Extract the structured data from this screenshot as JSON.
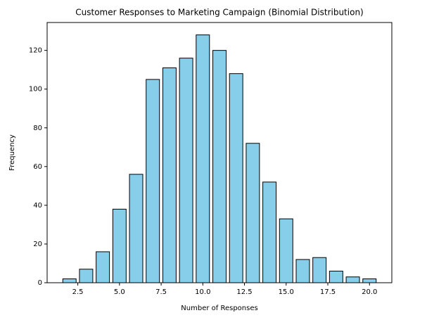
{
  "chart_data": {
    "type": "bar",
    "title": "Customer Responses to Marketing Campaign (Binomial Distribution)",
    "x_label": "Number of Responses",
    "y_label": "Frequency",
    "x": [
      2,
      3,
      4,
      5,
      6,
      7,
      8,
      9,
      10,
      11,
      12,
      13,
      14,
      15,
      16,
      17,
      18,
      19,
      20
    ],
    "values": [
      2,
      7,
      16,
      38,
      56,
      105,
      111,
      116,
      128,
      120,
      108,
      72,
      52,
      33,
      12,
      13,
      6,
      3,
      2
    ],
    "color": "#87ceeb",
    "edgecolor": "#000000",
    "xlim": [
      0.66,
      21.34
    ],
    "xticks": [
      2.5,
      {
        "value": 5,
        "label": "5.0"
      },
      7.5,
      {
        "value": 10,
        "label": "10.0"
      },
      12.5,
      {
        "value": 15,
        "label": "15.0"
      },
      17.5,
      {
        "value": 20,
        "label": "20.0"
      }
    ],
    "ylim": [
      0,
      134.4
    ],
    "yticks": [
      0,
      20,
      40,
      60,
      80,
      100,
      120
    ],
    "grid": false
  }
}
